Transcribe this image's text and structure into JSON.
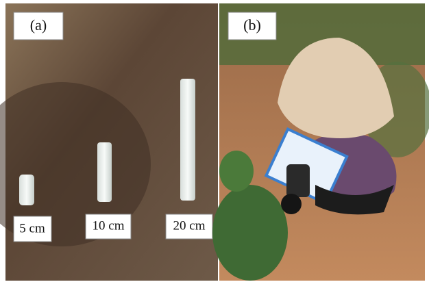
{
  "panels": [
    {
      "label": "(a)",
      "markers": [
        "5 cm",
        "10 cm",
        "20 cm"
      ]
    },
    {
      "label": "(b)"
    }
  ]
}
